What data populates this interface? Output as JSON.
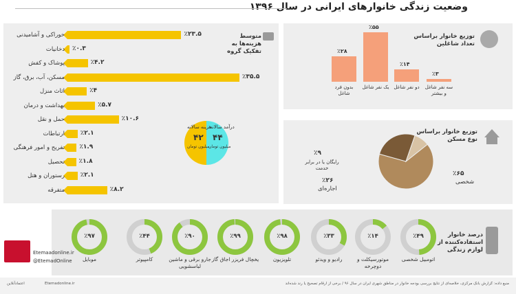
{
  "title": "وضعیت زندگی خانوارهای ایرانی در سال ۱۳۹۶",
  "colors": {
    "yellow": "#f5c400",
    "salmon": "#f5a07a",
    "cyan": "#5ce6e6",
    "brown": "#b08a5c",
    "green": "#8dc63f",
    "gray": "#d0d0d0"
  },
  "expenses": {
    "title": "متوسط هزینه‌ها به تفکیک گروه",
    "income_label": "درآمد سالانه",
    "income_value": "۴۴",
    "income_unit": "میلیون تومان",
    "cost_label": "هزینه سالانه",
    "cost_value": "۴۲",
    "cost_unit": "میلیون تومان"
  },
  "household_workers": {
    "title": "توزیع خانوار براساس تعداد شاغلین"
  },
  "housing": {
    "title": "توزیع خانوار براساس نوع مسکن"
  },
  "appliances": {
    "title": "درصد خانوار استفاده‌کننده از لوازم زندگی"
  },
  "watermark": "Etemaadonline.ir",
  "logo_handles": {
    "site": "Etemaadonline.ir",
    "social": "@EtemadOnline"
  },
  "footer": {
    "source": "منبع داده: گزارش بانک مرکزی، خلاصه‌ای از نتایج بررسی بودجه خانوار در مناطق شهری ایران در سال ۹۶ / برخی از ارقام تصحیح یا رند شده‌اند",
    "site": "Etemadonline.ir",
    "agency": "اعتمادآنلاین"
  },
  "chart_data": [
    {
      "type": "bar",
      "orientation": "horizontal",
      "title": "متوسط هزینه‌ها به تفکیک گروه",
      "categories": [
        "خوراکی و آشامیدنی",
        "دخانیات",
        "پوشاک و کفش",
        "مسکن، آب، برق، گاز",
        "اثاث منزل",
        "بهداشت و درمان",
        "حمل و نقل",
        "ارتباطات",
        "تفریح و امور فرهنگی",
        "تحصیل",
        "رستوران و هتل",
        "متفرقه"
      ],
      "values": [
        23.5,
        0.3,
        4.2,
        35.5,
        4,
        5.7,
        10.6,
        2.1,
        1.9,
        1.8,
        2.1,
        8.2
      ],
      "value_labels": [
        "٪۲۳.۵",
        "٪۰.۳",
        "٪۴.۲",
        "٪۳۵.۵",
        "٪۴",
        "٪۵.۷",
        "٪۱۰.۶",
        "٪۲.۱",
        "٪۱.۹",
        "٪۱.۸",
        "٪۲.۱",
        "٪۸.۲"
      ]
    },
    {
      "type": "bar",
      "title": "توزیع خانوار براساس تعداد شاغلین",
      "categories": [
        "بدون فرد شاغل",
        "یک نفر شاغل",
        "دو نفر شاغل",
        "سه نفر شاغل و بیشتر"
      ],
      "values": [
        28,
        55,
        14,
        3
      ],
      "value_labels": [
        "٪۲۸",
        "٪۵۵",
        "٪۱۴",
        "٪۳"
      ]
    },
    {
      "type": "pie",
      "title": "توزیع خانوار براساس نوع مسکن",
      "categories": [
        "شخصی",
        "اجاره‌ای",
        "رایگان یا در برابر خدمت"
      ],
      "values": [
        65,
        26,
        9
      ],
      "value_labels": [
        "٪۶۵",
        "٪۲۶",
        "٪۹"
      ]
    },
    {
      "type": "pie",
      "subtype": "donut",
      "title": "درصد خانوار استفاده‌کننده از لوازم زندگی",
      "categories": [
        "اتومبیل شخصی",
        "موتورسیکلت و دوچرخه",
        "رادیو و ویدئو",
        "تلویزیون",
        "یخچال فریزر اجاق گاز",
        "جارو برقی و ماشین لباسشویی",
        "کامپیوتر",
        "موبایل"
      ],
      "values": [
        49,
        14,
        33,
        98,
        99,
        90,
        44,
        97
      ],
      "value_labels": [
        "٪۴۹",
        "٪۱۴",
        "٪۳۳",
        "٪۹۸",
        "٪۹۹",
        "٪۹۰",
        "٪۴۴",
        "٪۹۷"
      ]
    }
  ]
}
